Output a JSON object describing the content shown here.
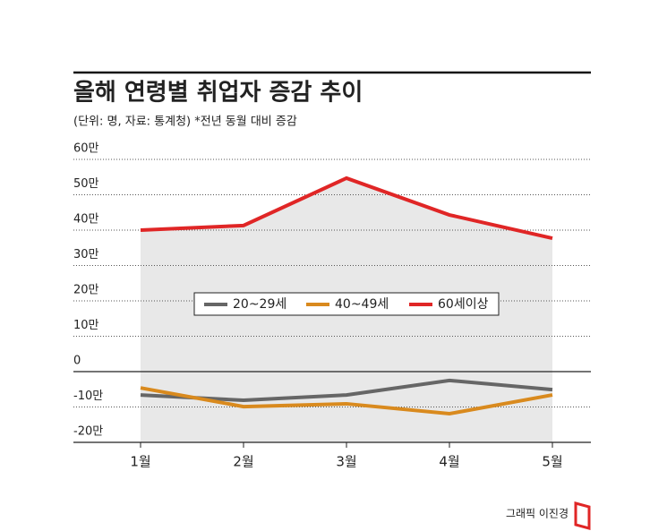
{
  "chart_data": {
    "type": "line",
    "title": "올해 연령별 취업자 증감 추이",
    "subtitle": "(단위: 명, 자료: 통계청)  *전년 동월 대비 증감",
    "categories": [
      "1월",
      "2월",
      "3월",
      "4월",
      "5월"
    ],
    "series": [
      {
        "name": "20~29세",
        "color": "#666666",
        "values": [
          -66000,
          -81000,
          -66000,
          -25000,
          -51000
        ]
      },
      {
        "name": "40~49세",
        "color": "#d98a1e",
        "values": [
          -46000,
          -99000,
          -91000,
          -119000,
          -66000
        ]
      },
      {
        "name": "60세이상",
        "color": "#e02626",
        "values": [
          400000,
          413000,
          547000,
          443000,
          377000
        ]
      }
    ],
    "ylim": [
      -200000,
      600000
    ],
    "yticks": [
      {
        "value": -200000,
        "label": "-20만"
      },
      {
        "value": -100000,
        "label": "-10만"
      },
      0,
      {
        "value": 100000,
        "label": "10만"
      },
      {
        "value": 200000,
        "label": "20만"
      },
      {
        "value": 300000,
        "label": "30만"
      },
      {
        "value": 400000,
        "label": "40만"
      },
      {
        "value": 500000,
        "label": "50만"
      },
      {
        "value": 600000,
        "label": "60만"
      }
    ],
    "grid": true,
    "credit": "그래픽 이진경"
  }
}
